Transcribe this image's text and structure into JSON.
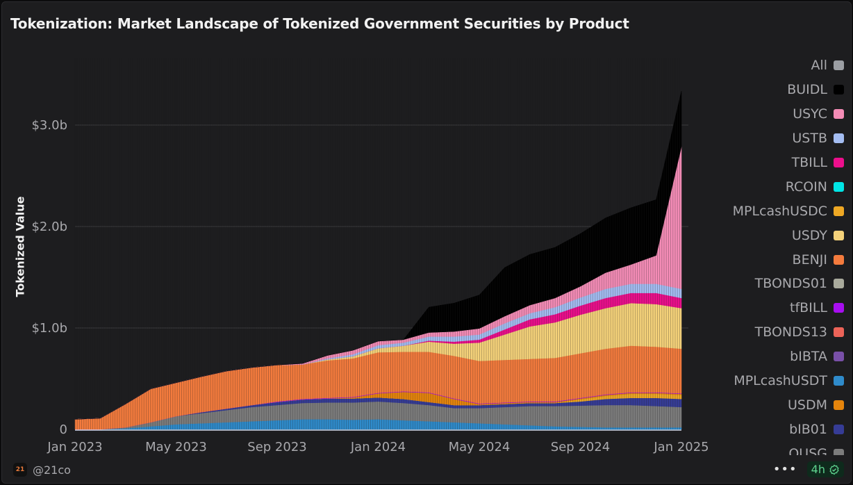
{
  "title": "Tokenization: Market Landscape of Tokenized Government Securities by Product",
  "footer": {
    "handle": "@21co",
    "logo_text": "21",
    "more_label": "•••",
    "refresh_badge": "4h"
  },
  "colors": {
    "background": "#1d1d1f",
    "grid": "#3a3a3d",
    "text": "#a9a9ad",
    "badge": "#5fd38f"
  },
  "chart_data": {
    "type": "area",
    "stacked": true,
    "title": "Tokenization: Market Landscape of Tokenized Government Securities by Product",
    "xlabel": "",
    "ylabel": "Tokenized Value",
    "ylim": [
      0,
      3700
    ],
    "y_unit": "USD millions",
    "grid": true,
    "legend_position": "right",
    "y_ticks": [
      {
        "value": 0,
        "label": "0"
      },
      {
        "value": 1000,
        "label": "$1.0b"
      },
      {
        "value": 2000,
        "label": "$2.0b"
      },
      {
        "value": 3000,
        "label": "$3.0b"
      }
    ],
    "x_ticks": [
      {
        "index": 0,
        "label": "Jan 2023"
      },
      {
        "index": 4,
        "label": "May 2023"
      },
      {
        "index": 8,
        "label": "Sep 2023"
      },
      {
        "index": 12,
        "label": "Jan 2024"
      },
      {
        "index": 16,
        "label": "May 2024"
      },
      {
        "index": 20,
        "label": "Sep 2024"
      },
      {
        "index": 24,
        "label": "Jan 2025"
      }
    ],
    "x": [
      "2023-01",
      "2023-02",
      "2023-03",
      "2023-04",
      "2023-05",
      "2023-06",
      "2023-07",
      "2023-08",
      "2023-09",
      "2023-10",
      "2023-11",
      "2023-12",
      "2024-01",
      "2024-02",
      "2024-03",
      "2024-04",
      "2024-05",
      "2024-06",
      "2024-07",
      "2024-08",
      "2024-09",
      "2024-10",
      "2024-11",
      "2024-12",
      "2025-01"
    ],
    "legend": [
      {
        "name": "All",
        "color": "#9b9ea3"
      },
      {
        "name": "BUIDL",
        "color": "#000000"
      },
      {
        "name": "USYC",
        "color": "#f48cb6"
      },
      {
        "name": "USTB",
        "color": "#a4bdf2"
      },
      {
        "name": "TBILL",
        "color": "#ec0f8c"
      },
      {
        "name": "RCOIN",
        "color": "#00e5e5"
      },
      {
        "name": "MPLcashUSDC",
        "color": "#eea824"
      },
      {
        "name": "USDY",
        "color": "#f5d27a"
      },
      {
        "name": "BENJI",
        "color": "#f47b3d"
      },
      {
        "name": "TBONDS01",
        "color": "#a9aa9c"
      },
      {
        "name": "tfBILL",
        "color": "#a70ef0"
      },
      {
        "name": "TBONDS13",
        "color": "#ec6358"
      },
      {
        "name": "bIBTA",
        "color": "#7950a8"
      },
      {
        "name": "MPLcashUSDT",
        "color": "#2f8bcb"
      },
      {
        "name": "USDM",
        "color": "#e6850c"
      },
      {
        "name": "bIB01",
        "color": "#363c96"
      },
      {
        "name": "OUSG",
        "color": "#7c7c7c"
      }
    ],
    "series": [
      {
        "name": "MPLcashUSDT",
        "color": "#2f8bcb",
        "values": [
          0,
          0,
          10,
          30,
          50,
          60,
          70,
          80,
          90,
          100,
          100,
          95,
          100,
          90,
          80,
          70,
          60,
          50,
          40,
          30,
          25,
          20,
          20,
          20,
          20
        ]
      },
      {
        "name": "OUSG",
        "color": "#7c7c7c",
        "values": [
          0,
          0,
          10,
          40,
          80,
          100,
          120,
          140,
          150,
          160,
          165,
          170,
          175,
          170,
          160,
          140,
          150,
          170,
          190,
          200,
          210,
          220,
          220,
          210,
          200
        ]
      },
      {
        "name": "bIB01",
        "color": "#363c96",
        "values": [
          0,
          0,
          0,
          0,
          0,
          10,
          15,
          20,
          30,
          35,
          40,
          40,
          40,
          40,
          30,
          30,
          30,
          30,
          30,
          30,
          40,
          60,
          70,
          80,
          80
        ]
      },
      {
        "name": "MPLcashUSDC",
        "color": "#eea824",
        "values": [
          0,
          0,
          0,
          0,
          0,
          0,
          0,
          0,
          0,
          0,
          0,
          0,
          0,
          0,
          0,
          0,
          0,
          0,
          0,
          0,
          20,
          30,
          40,
          40,
          40
        ]
      },
      {
        "name": "USDM",
        "color": "#e6850c",
        "values": [
          0,
          0,
          0,
          0,
          0,
          0,
          0,
          0,
          0,
          0,
          0,
          10,
          40,
          70,
          90,
          60,
          10,
          10,
          10,
          10,
          10,
          10,
          10,
          10,
          10
        ]
      },
      {
        "name": "tfBILL",
        "color": "#a70ef0",
        "values": [
          0,
          0,
          0,
          0,
          0,
          0,
          0,
          0,
          5,
          5,
          5,
          5,
          5,
          5,
          5,
          5,
          5,
          5,
          5,
          5,
          5,
          5,
          5,
          5,
          5
        ]
      },
      {
        "name": "BENJI",
        "color": "#f47b3d",
        "values": [
          100,
          110,
          230,
          330,
          330,
          350,
          370,
          370,
          360,
          340,
          370,
          380,
          400,
          390,
          400,
          420,
          420,
          420,
          420,
          430,
          440,
          450,
          460,
          450,
          440
        ]
      },
      {
        "name": "USDY",
        "color": "#f5d27a",
        "values": [
          0,
          0,
          0,
          0,
          0,
          0,
          0,
          0,
          0,
          0,
          10,
          20,
          40,
          60,
          100,
          120,
          180,
          250,
          320,
          350,
          380,
          400,
          420,
          420,
          400
        ]
      },
      {
        "name": "TBILL",
        "color": "#ec0f8c",
        "values": [
          0,
          0,
          0,
          0,
          0,
          0,
          0,
          0,
          0,
          0,
          0,
          0,
          0,
          0,
          10,
          20,
          30,
          50,
          70,
          80,
          90,
          100,
          100,
          110,
          100
        ]
      },
      {
        "name": "USTB",
        "color": "#a4bdf2",
        "values": [
          0,
          0,
          0,
          0,
          0,
          0,
          0,
          0,
          0,
          0,
          10,
          20,
          30,
          30,
          40,
          50,
          50,
          60,
          60,
          70,
          80,
          90,
          90,
          90,
          90
        ]
      },
      {
        "name": "USYC",
        "color": "#f48cb6",
        "values": [
          0,
          0,
          0,
          0,
          0,
          0,
          0,
          0,
          0,
          10,
          30,
          40,
          40,
          30,
          40,
          50,
          60,
          70,
          80,
          90,
          110,
          160,
          190,
          280,
          1400
        ]
      },
      {
        "name": "BUIDL",
        "color": "#000000",
        "values": [
          0,
          0,
          0,
          0,
          0,
          0,
          0,
          0,
          0,
          0,
          0,
          0,
          0,
          0,
          250,
          280,
          330,
          480,
          500,
          500,
          520,
          540,
          560,
          550,
          550
        ]
      }
    ]
  }
}
